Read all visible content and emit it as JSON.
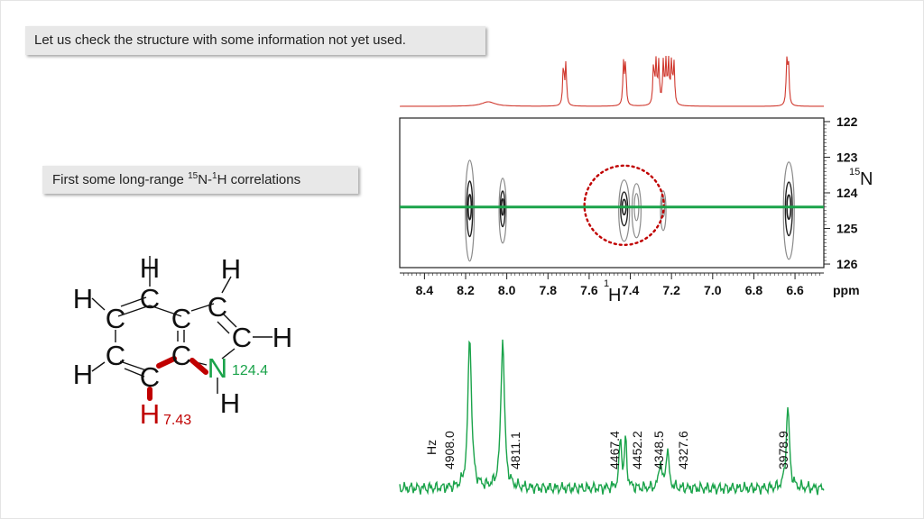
{
  "title": "Let us check the structure with some information not yet used.",
  "subtitle": {
    "prefix": "First some long-range ",
    "n_iso": "15",
    "n_sym": "N-",
    "h_iso": "1",
    "h_sym": "H correlations"
  },
  "molecule": {
    "atoms": [
      {
        "sym": "H",
        "color": "#111111"
      },
      {
        "sym": "H",
        "color": "#111111"
      },
      {
        "sym": "H",
        "color": "#111111"
      },
      {
        "sym": "C",
        "color": "#111111"
      },
      {
        "sym": "C",
        "color": "#111111"
      },
      {
        "sym": "C",
        "color": "#111111"
      },
      {
        "sym": "C",
        "color": "#111111"
      },
      {
        "sym": "C",
        "color": "#111111"
      },
      {
        "sym": "H",
        "color": "#111111"
      },
      {
        "sym": "C",
        "color": "#111111"
      },
      {
        "sym": "C",
        "color": "#111111"
      },
      {
        "sym": "N",
        "color": "#1aa34a"
      },
      {
        "sym": "H",
        "color": "#111111"
      },
      {
        "sym": "C",
        "color": "#111111"
      },
      {
        "sym": "H",
        "color": "#c00000"
      },
      {
        "sym": "H",
        "color": "#111111"
      }
    ],
    "n_shift": "124.4",
    "h_shift": "7.43"
  },
  "hsqc_axis": {
    "x_ticks": [
      "8.4",
      "8.2",
      "8.0",
      "7.8",
      "7.6",
      "7.4",
      "7.2",
      "7.0",
      "6.8",
      "6.6"
    ],
    "x_unit": "ppm",
    "x_label_iso": "1",
    "x_label_sym": "H",
    "y_ticks": [
      "122",
      "123",
      "124",
      "125",
      "126"
    ],
    "y_label_iso": "15",
    "y_label_sym": "N"
  },
  "chart_data": {
    "type": "line",
    "title": "",
    "xlabel": "ppm",
    "ylabel": "",
    "xlim": [
      8.52,
      6.46
    ],
    "ylim": [
      121.9,
      126.1
    ],
    "grid": false,
    "colors": {
      "proton_1d": "#d0392f",
      "slice": "#1aa34a",
      "contour_dark": "#222222",
      "contour_light": "#8a8a8a",
      "circle": "#c00000"
    },
    "slice_position_n_ppm": 124.4,
    "highlight_peak_ppm": 7.43,
    "cross_peaks_h_ppm": [
      8.18,
      8.02,
      7.43,
      7.37,
      7.24,
      6.63
    ],
    "proton_1d_peaks_ppm": [
      8.09,
      7.725,
      7.713,
      7.433,
      7.423,
      7.287,
      7.275,
      7.262,
      7.24,
      7.227,
      7.214,
      7.2,
      7.188,
      6.64,
      6.632
    ],
    "slice_peaks": {
      "hz_labels": [
        "4908.0",
        "4811.1",
        "4467.4",
        "4452.2",
        "4348.5",
        "4327.6",
        "3978.9"
      ],
      "unit": "Hz",
      "heights": [
        1.0,
        0.98,
        0.33,
        0.31,
        0.18,
        0.26,
        0.53
      ]
    }
  }
}
